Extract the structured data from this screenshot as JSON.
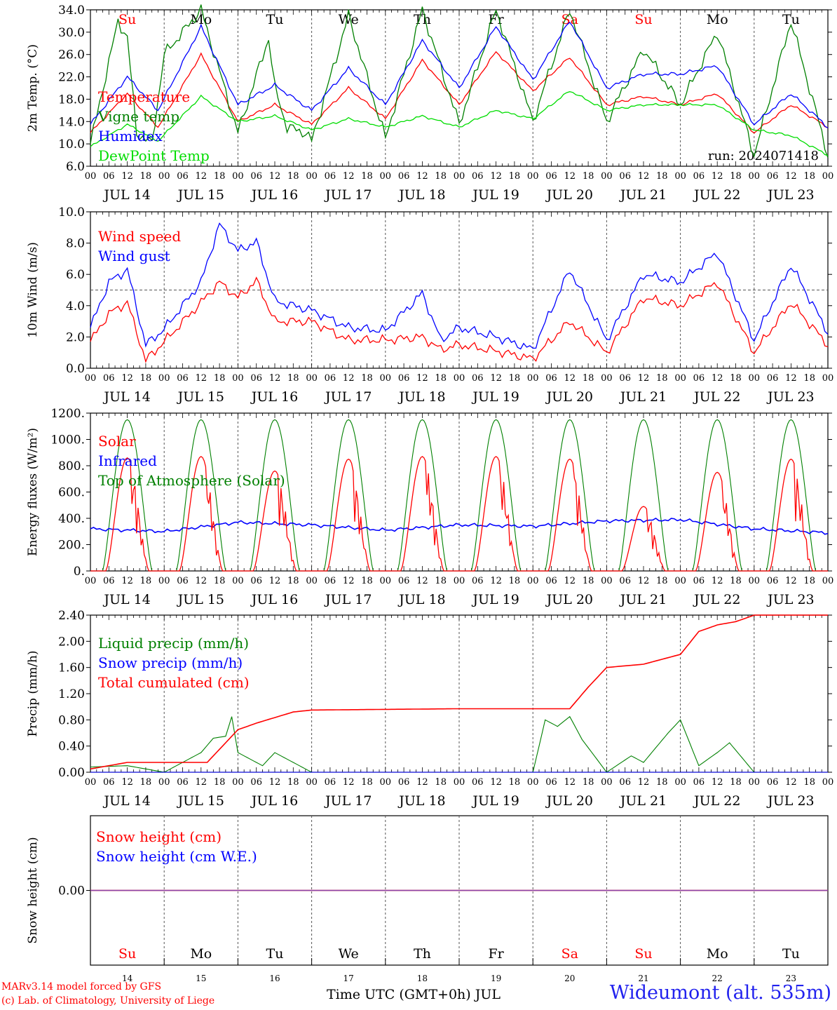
{
  "run_label": "run: 2024071418",
  "x_axis": {
    "hour_ticks": [
      "00",
      "06",
      "12",
      "18"
    ],
    "dates": [
      "JUL 14",
      "JUL 15",
      "JUL 16",
      "JUL 17",
      "JUL 18",
      "JUL 19",
      "JUL 20",
      "JUL 21",
      "JUL 22",
      "JUL 23"
    ],
    "weekdays": [
      "Su",
      "Mo",
      "Tu",
      "We",
      "Th",
      "Fr",
      "Sa",
      "Su",
      "Mo",
      "Tu"
    ],
    "weekday_colors": [
      "#ff0000",
      "#000000",
      "#000000",
      "#000000",
      "#000000",
      "#000000",
      "#ff0000",
      "#ff0000",
      "#000000",
      "#000000"
    ],
    "day_numbers": [
      "14",
      "15",
      "16",
      "17",
      "18",
      "19",
      "20",
      "21",
      "22",
      "23"
    ],
    "title": "Time UTC (GMT+0h) JUL"
  },
  "footer": {
    "credit_line1": "MARv3.14 model forced by GFS",
    "credit_line2": "(c) Lab. of Climatology, University of Liege",
    "station": "Wideumont (alt. 535m)"
  },
  "chart_data": [
    {
      "type": "line",
      "ylabel": "2m Temp. (°C)",
      "ylim": [
        6.0,
        34.0
      ],
      "yticks": [
        "6.0",
        "10.0",
        "14.0",
        "18.0",
        "22.0",
        "26.0",
        "30.0",
        "34.0"
      ],
      "x_unit": "hours since JUL 14 00 UTC",
      "series": [
        {
          "name": "Temperature",
          "color": "#ff0000",
          "x": [
            0,
            12,
            22,
            36,
            48,
            60,
            72,
            84,
            96,
            108,
            120,
            132,
            144,
            156,
            168,
            180,
            192,
            204,
            216,
            228,
            240
          ],
          "values": [
            12,
            19,
            13,
            26,
            14,
            17,
            13.5,
            20,
            14.5,
            25,
            17,
            26.5,
            19.5,
            25.5,
            17,
            18.5,
            17,
            19,
            12,
            17,
            13
          ]
        },
        {
          "name": "Vigne temp",
          "color": "#008000",
          "x": [
            0,
            9,
            12,
            15,
            20,
            24,
            36,
            48,
            58,
            60,
            64,
            70,
            72,
            84,
            96,
            108,
            120,
            132,
            144,
            156,
            168,
            180,
            192,
            204,
            216,
            228,
            240
          ],
          "values": [
            10,
            32,
            29,
            12,
            10,
            26,
            34,
            12,
            29,
            20,
            13,
            12,
            10.5,
            33,
            11,
            34,
            13.5,
            34,
            14,
            34,
            14,
            27,
            17,
            30,
            8,
            32,
            8
          ]
        },
        {
          "name": "Humidex",
          "color": "#0000ff",
          "x": [
            0,
            12,
            22,
            36,
            48,
            60,
            72,
            84,
            96,
            108,
            120,
            132,
            144,
            156,
            168,
            180,
            192,
            204,
            216,
            228,
            240
          ],
          "values": [
            13.5,
            22,
            16,
            31,
            17,
            20.5,
            16,
            23.5,
            17,
            28.5,
            20,
            31,
            21.5,
            32,
            20,
            22.5,
            22.5,
            24,
            13.5,
            19,
            13
          ]
        },
        {
          "name": "DewPoint Temp",
          "color": "#00dd00",
          "x": [
            0,
            12,
            22,
            36,
            48,
            60,
            72,
            84,
            96,
            108,
            120,
            132,
            144,
            156,
            168,
            180,
            192,
            204,
            216,
            228,
            240
          ],
          "values": [
            9.5,
            13.5,
            10.5,
            18.5,
            14,
            15,
            12.5,
            14.5,
            13,
            15,
            13,
            16,
            14.5,
            19.5,
            16,
            17,
            17,
            17,
            12.5,
            11.5,
            8
          ]
        }
      ]
    },
    {
      "type": "line",
      "ylabel": "10m Wind (m/s)",
      "ylim": [
        0.0,
        10.0
      ],
      "yticks": [
        "0.0",
        "2.0",
        "4.0",
        "6.0",
        "8.0",
        "10.0"
      ],
      "reference_line": 5.0,
      "x_unit": "hours since JUL 14 00 UTC",
      "series": [
        {
          "name": "Wind speed",
          "color": "#ff0000",
          "x": [
            0,
            6,
            12,
            18,
            24,
            36,
            42,
            48,
            54,
            60,
            72,
            84,
            96,
            108,
            114,
            120,
            132,
            144,
            156,
            168,
            180,
            192,
            204,
            216,
            228,
            240
          ],
          "values": [
            1.7,
            3.5,
            4.2,
            0.5,
            1.7,
            4.2,
            5.5,
            4.5,
            5.6,
            3.0,
            3.0,
            1.8,
            1.8,
            2.0,
            1.2,
            1.5,
            1.1,
            0.6,
            3.0,
            1.0,
            4.5,
            4.0,
            5.5,
            1.0,
            4.2,
            1.5
          ]
        },
        {
          "name": "Wind gust",
          "color": "#0000ff",
          "x": [
            0,
            6,
            12,
            18,
            24,
            36,
            42,
            48,
            54,
            60,
            72,
            84,
            96,
            108,
            114,
            120,
            132,
            144,
            156,
            168,
            180,
            192,
            204,
            216,
            228,
            240
          ],
          "values": [
            2.6,
            5.5,
            6.3,
            1.5,
            2.5,
            5.5,
            9.2,
            7.5,
            8.1,
            4.3,
            3.7,
            2.6,
            2.4,
            4.8,
            1.8,
            2.6,
            2.0,
            1.2,
            6.3,
            1.8,
            6.0,
            5.5,
            7.4,
            1.8,
            6.6,
            2.3
          ]
        }
      ]
    },
    {
      "type": "line",
      "ylabel": "Energy fluxes (W/m²)",
      "ylim": [
        0,
        1200
      ],
      "yticks": [
        "0.",
        "200.",
        "400.",
        "600.",
        "800.",
        "1000.",
        "1200."
      ],
      "x_unit": "hours since JUL 14 00 UTC",
      "series": [
        {
          "name": "Solar",
          "color": "#ff0000",
          "peaks": [
            860,
            870,
            760,
            850,
            870,
            870,
            850,
            490,
            750,
            850
          ]
        },
        {
          "name": "Infrared",
          "color": "#0000ff",
          "x": [
            0,
            24,
            48,
            72,
            96,
            120,
            144,
            168,
            192,
            216,
            240
          ],
          "values": [
            320,
            300,
            370,
            350,
            310,
            350,
            340,
            380,
            390,
            320,
            290
          ]
        },
        {
          "name": "Top of Atmosphere (Solar)",
          "color": "#008000",
          "peak": 1150
        }
      ]
    },
    {
      "type": "line",
      "ylabel": "Precip (mm/h)",
      "ylim": [
        0.0,
        2.4
      ],
      "yticks": [
        "0.00",
        "0.40",
        "0.80",
        "1.20",
        "1.60",
        "2.00",
        "2.40"
      ],
      "x_unit": "hours since JUL 14 00 UTC",
      "series": [
        {
          "name": "Liquid precip (mm/h)",
          "color": "#008000",
          "x": [
            0,
            12,
            24,
            36,
            40,
            44,
            46,
            48,
            56,
            60,
            64,
            72,
            144,
            148,
            152,
            156,
            160,
            168,
            176,
            180,
            188,
            192,
            198,
            204,
            208,
            216,
            240
          ],
          "values": [
            0.08,
            0.1,
            0.0,
            0.3,
            0.52,
            0.55,
            0.85,
            0.3,
            0.1,
            0.3,
            0.2,
            0.0,
            0.0,
            0.8,
            0.7,
            0.85,
            0.5,
            0.0,
            0.25,
            0.15,
            0.6,
            0.8,
            0.1,
            0.3,
            0.45,
            0.0,
            0.0
          ]
        },
        {
          "name": "Snow precip (mm/h)",
          "color": "#0000ff",
          "x": [
            0,
            240
          ],
          "values": [
            0,
            0
          ]
        },
        {
          "name": "Total cumulated (cm)",
          "color": "#ff0000",
          "x": [
            0,
            12,
            38,
            48,
            54,
            66,
            72,
            96,
            120,
            156,
            162,
            168,
            180,
            192,
            198,
            204,
            210,
            216,
            240
          ],
          "values": [
            0.05,
            0.15,
            0.15,
            0.65,
            0.75,
            0.92,
            0.95,
            0.96,
            0.97,
            0.97,
            1.3,
            1.6,
            1.65,
            1.8,
            2.15,
            2.25,
            2.3,
            2.4,
            2.4
          ]
        }
      ]
    },
    {
      "type": "line",
      "ylabel": "Snow height (cm)",
      "yticks": [
        "0.00"
      ],
      "x_unit": "hours since JUL 14 00 UTC",
      "series": [
        {
          "name": "Snow height (cm)",
          "color": "#ff0000",
          "x": [
            0,
            240
          ],
          "values": [
            0,
            0
          ]
        },
        {
          "name": "Snow height (cm W.E.)",
          "color": "#0000ff",
          "x": [
            0,
            240
          ],
          "values": [
            0,
            0
          ]
        }
      ]
    }
  ]
}
